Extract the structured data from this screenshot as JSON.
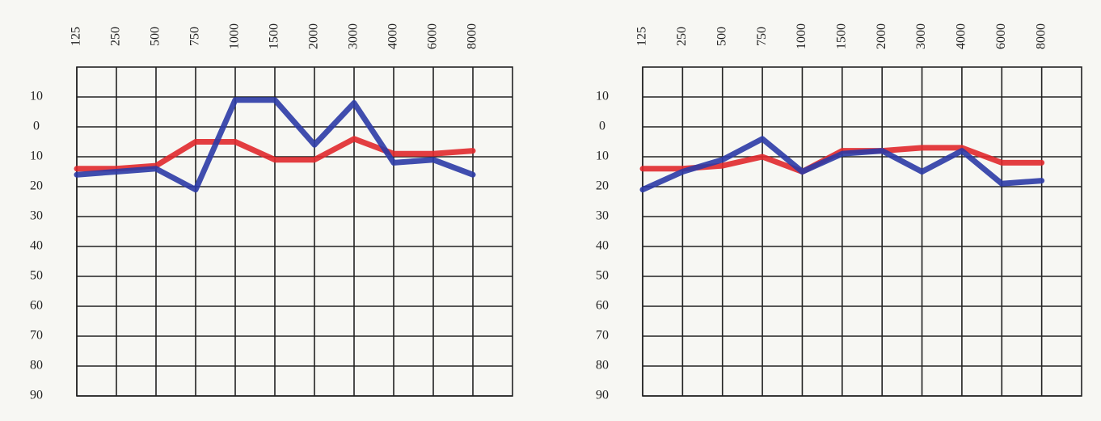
{
  "chart_data": [
    {
      "type": "line",
      "categories": [
        "125",
        "250",
        "500",
        "750",
        "1000",
        "1500",
        "2000",
        "3000",
        "4000",
        "6000",
        "8000"
      ],
      "series": [
        {
          "color": "#e0282c",
          "values": [
            14,
            14,
            13,
            5,
            5,
            11,
            11,
            4,
            9,
            9,
            8
          ]
        },
        {
          "color": "#2b3aa6",
          "values": [
            16,
            15,
            14,
            21,
            -9,
            -9,
            6,
            -8,
            12,
            11,
            16
          ]
        }
      ],
      "ylim": [
        -20,
        90
      ],
      "inverted": true,
      "yticks": [
        {
          "value": -10,
          "label": "10"
        },
        0,
        10,
        20,
        30,
        40,
        50,
        60,
        70,
        80,
        90
      ],
      "grid": true
    },
    {
      "type": "line",
      "categories": [
        "125",
        "250",
        "500",
        "750",
        "1000",
        "1500",
        "2000",
        "3000",
        "4000",
        "6000",
        "8000"
      ],
      "series": [
        {
          "color": "#e0282c",
          "values": [
            14,
            14,
            13,
            10,
            15,
            8,
            8,
            7,
            7,
            12,
            12
          ]
        },
        {
          "color": "#2b3aa6",
          "values": [
            21,
            15,
            11,
            4,
            15,
            9,
            8,
            15,
            8,
            19,
            18
          ]
        }
      ],
      "ylim": [
        -20,
        90
      ],
      "inverted": true,
      "yticks": [
        {
          "value": -10,
          "label": "10"
        },
        0,
        10,
        20,
        30,
        40,
        50,
        60,
        70,
        80,
        90
      ],
      "grid": true
    }
  ]
}
